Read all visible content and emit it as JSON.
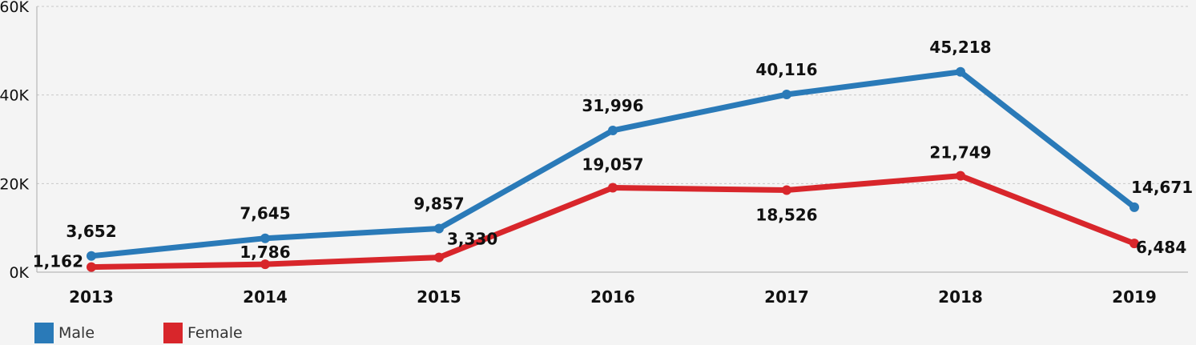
{
  "colors": {
    "male": "#2a7ab8",
    "female": "#d8262b",
    "grid": "#c8c8c8",
    "axis": "#aaaaaa"
  },
  "legend": [
    {
      "label": "Male",
      "color": "#2a7ab8"
    },
    {
      "label": "Female",
      "color": "#d8262b"
    }
  ],
  "chart_data": {
    "type": "line",
    "title": "",
    "xlabel": "",
    "ylabel": "",
    "categories": [
      "2013",
      "2014",
      "2015",
      "2016",
      "2017",
      "2018",
      "2019"
    ],
    "ylim": [
      0,
      60000
    ],
    "yticks": [
      {
        "value": 0,
        "label": "0K"
      },
      {
        "value": 20000,
        "label": "20K"
      },
      {
        "value": 40000,
        "label": "40K"
      },
      {
        "value": 60000,
        "label": "60K"
      }
    ],
    "grid": true,
    "legend_position": "bottom-left",
    "series": [
      {
        "name": "Male",
        "color": "#2a7ab8",
        "values": [
          3652,
          7645,
          9857,
          31996,
          40116,
          45218,
          14671
        ],
        "labels": [
          "3,652",
          "7,645",
          "9,857",
          "31,996",
          "40,116",
          "45,218",
          "14,671"
        ]
      },
      {
        "name": "Female",
        "color": "#d8262b",
        "values": [
          1162,
          1786,
          3330,
          19057,
          18526,
          21749,
          6484
        ],
        "labels": [
          "1,162",
          "1,786",
          "3,330",
          "19,057",
          "18,526",
          "21,749",
          "6,484"
        ]
      }
    ]
  }
}
